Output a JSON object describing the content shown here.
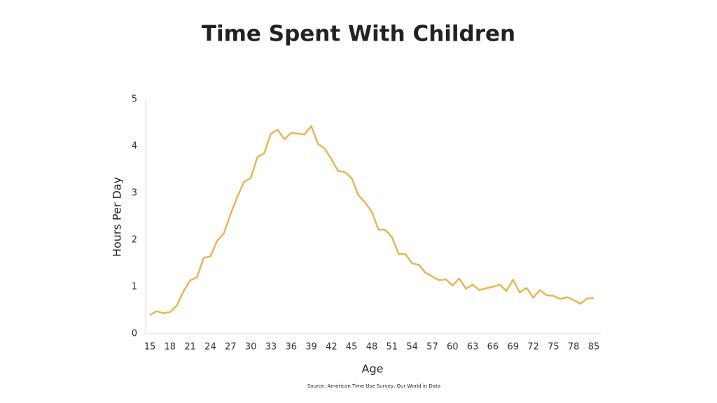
{
  "chart_data": {
    "type": "line",
    "title": "Time Spent With Children",
    "x_label": "Age",
    "y_label": "Hours Per Day",
    "source": "Source: American Time Use Survey, Our World in Data",
    "categories": [
      15,
      null,
      null,
      18,
      null,
      null,
      21,
      null,
      null,
      24,
      null,
      null,
      27,
      null,
      null,
      30,
      null,
      null,
      33,
      null,
      null,
      36,
      null,
      null,
      39,
      null,
      null,
      42,
      null,
      null,
      45,
      null,
      null,
      48,
      null,
      null,
      51,
      null,
      null,
      54,
      null,
      null,
      57,
      null,
      null,
      60,
      null,
      null,
      63,
      null,
      null,
      66,
      null,
      null,
      69,
      null,
      null,
      72,
      null,
      null,
      75,
      null,
      null,
      78,
      null,
      null,
      85
    ],
    "values": [
      0.4,
      0.48,
      0.44,
      0.46,
      0.6,
      0.9,
      1.14,
      1.2,
      1.62,
      1.65,
      1.98,
      2.14,
      2.55,
      2.92,
      3.24,
      3.32,
      3.77,
      3.85,
      4.27,
      4.35,
      4.15,
      4.28,
      4.27,
      4.25,
      4.43,
      4.05,
      3.95,
      3.72,
      3.47,
      3.45,
      3.32,
      2.96,
      2.8,
      2.6,
      2.22,
      2.22,
      2.06,
      1.7,
      1.7,
      1.5,
      1.47,
      1.3,
      1.22,
      1.14,
      1.16,
      1.03,
      1.18,
      0.96,
      1.05,
      0.93,
      0.97,
      1.0,
      1.05,
      0.91,
      1.15,
      0.88,
      0.98,
      0.77,
      0.93,
      0.82,
      0.81,
      0.74,
      0.78,
      0.72,
      0.64,
      0.75,
      0.76
    ],
    "color": "#e6b652",
    "ylim": [
      0,
      5
    ],
    "yticks": [
      0,
      1,
      2,
      3,
      4,
      5
    ]
  }
}
